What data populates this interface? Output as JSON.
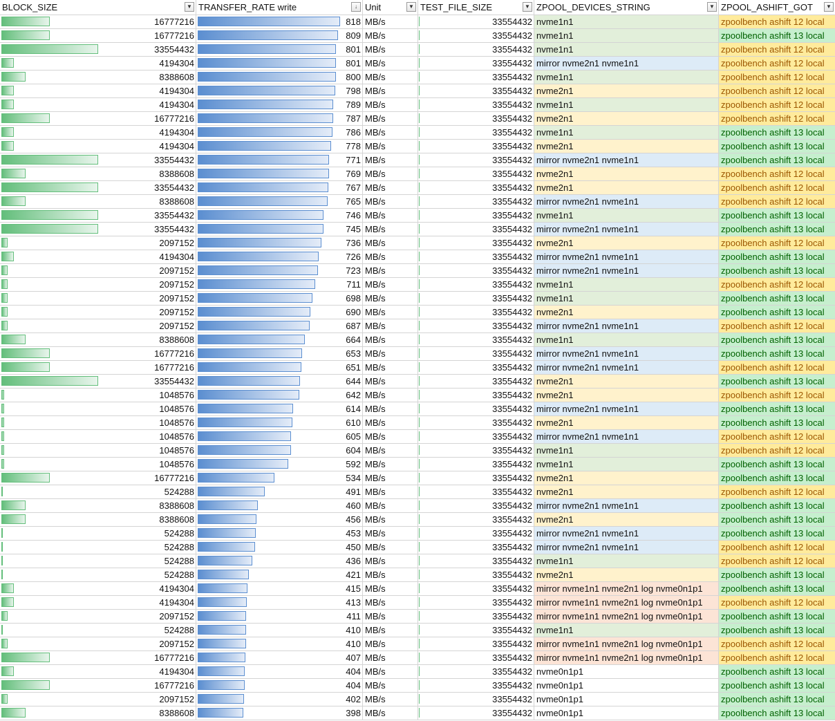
{
  "columns": [
    {
      "label": "BLOCK_SIZE",
      "filter": "dropdown"
    },
    {
      "label": "TRANSFER_RATE write",
      "filter": "sort-desc"
    },
    {
      "label": "Unit",
      "filter": "filter"
    },
    {
      "label": "TEST_FILE_SIZE",
      "filter": "filter"
    },
    {
      "label": "ZPOOL_DEVICES_STRING",
      "filter": "dropdown"
    },
    {
      "label": "ZPOOL_ASHIFT_GOT",
      "filter": "dropdown"
    }
  ],
  "colors": {
    "databar_green": "#63be7b",
    "databar_blue": "#5b8ed0",
    "device_nvme1n1": "#e2efda",
    "device_nvme2n1": "#fff2cc",
    "device_mirror": "#ddebf7",
    "device_mirror_log": "#fce4d6",
    "device_nvme0n1p1": "#ffffff",
    "ashift13_fill": "#c6efce",
    "ashift13_text": "#006100",
    "ashift12_fill": "#ffeb9c",
    "ashift12_text": "#9c5700"
  },
  "rows": [
    {
      "block_size": "16777216",
      "rate": "818",
      "unit": "MB/s",
      "test_file_size": "33554432",
      "devices": "nvme1n1",
      "ashift": "zpoolbench ashift 12 local"
    },
    {
      "block_size": "16777216",
      "rate": "809",
      "unit": "MB/s",
      "test_file_size": "33554432",
      "devices": "nvme1n1",
      "ashift": "zpoolbench ashift 13 local"
    },
    {
      "block_size": "33554432",
      "rate": "801",
      "unit": "MB/s",
      "test_file_size": "33554432",
      "devices": "nvme1n1",
      "ashift": "zpoolbench ashift 12 local"
    },
    {
      "block_size": "4194304",
      "rate": "801",
      "unit": "MB/s",
      "test_file_size": "33554432",
      "devices": "mirror nvme2n1 nvme1n1",
      "ashift": "zpoolbench ashift 12 local"
    },
    {
      "block_size": "8388608",
      "rate": "800",
      "unit": "MB/s",
      "test_file_size": "33554432",
      "devices": "nvme1n1",
      "ashift": "zpoolbench ashift 12 local"
    },
    {
      "block_size": "4194304",
      "rate": "798",
      "unit": "MB/s",
      "test_file_size": "33554432",
      "devices": "nvme2n1",
      "ashift": "zpoolbench ashift 12 local"
    },
    {
      "block_size": "4194304",
      "rate": "789",
      "unit": "MB/s",
      "test_file_size": "33554432",
      "devices": "nvme1n1",
      "ashift": "zpoolbench ashift 12 local"
    },
    {
      "block_size": "16777216",
      "rate": "787",
      "unit": "MB/s",
      "test_file_size": "33554432",
      "devices": "nvme2n1",
      "ashift": "zpoolbench ashift 12 local"
    },
    {
      "block_size": "4194304",
      "rate": "786",
      "unit": "MB/s",
      "test_file_size": "33554432",
      "devices": "nvme1n1",
      "ashift": "zpoolbench ashift 13 local"
    },
    {
      "block_size": "4194304",
      "rate": "778",
      "unit": "MB/s",
      "test_file_size": "33554432",
      "devices": "nvme2n1",
      "ashift": "zpoolbench ashift 13 local"
    },
    {
      "block_size": "33554432",
      "rate": "771",
      "unit": "MB/s",
      "test_file_size": "33554432",
      "devices": "mirror nvme2n1 nvme1n1",
      "ashift": "zpoolbench ashift 13 local"
    },
    {
      "block_size": "8388608",
      "rate": "769",
      "unit": "MB/s",
      "test_file_size": "33554432",
      "devices": "nvme2n1",
      "ashift": "zpoolbench ashift 12 local"
    },
    {
      "block_size": "33554432",
      "rate": "767",
      "unit": "MB/s",
      "test_file_size": "33554432",
      "devices": "nvme2n1",
      "ashift": "zpoolbench ashift 12 local"
    },
    {
      "block_size": "8388608",
      "rate": "765",
      "unit": "MB/s",
      "test_file_size": "33554432",
      "devices": "mirror nvme2n1 nvme1n1",
      "ashift": "zpoolbench ashift 12 local"
    },
    {
      "block_size": "33554432",
      "rate": "746",
      "unit": "MB/s",
      "test_file_size": "33554432",
      "devices": "nvme1n1",
      "ashift": "zpoolbench ashift 13 local"
    },
    {
      "block_size": "33554432",
      "rate": "745",
      "unit": "MB/s",
      "test_file_size": "33554432",
      "devices": "mirror nvme2n1 nvme1n1",
      "ashift": "zpoolbench ashift 13 local"
    },
    {
      "block_size": "2097152",
      "rate": "736",
      "unit": "MB/s",
      "test_file_size": "33554432",
      "devices": "nvme2n1",
      "ashift": "zpoolbench ashift 12 local"
    },
    {
      "block_size": "4194304",
      "rate": "726",
      "unit": "MB/s",
      "test_file_size": "33554432",
      "devices": "mirror nvme2n1 nvme1n1",
      "ashift": "zpoolbench ashift 13 local"
    },
    {
      "block_size": "2097152",
      "rate": "723",
      "unit": "MB/s",
      "test_file_size": "33554432",
      "devices": "mirror nvme2n1 nvme1n1",
      "ashift": "zpoolbench ashift 13 local"
    },
    {
      "block_size": "2097152",
      "rate": "711",
      "unit": "MB/s",
      "test_file_size": "33554432",
      "devices": "nvme1n1",
      "ashift": "zpoolbench ashift 12 local"
    },
    {
      "block_size": "2097152",
      "rate": "698",
      "unit": "MB/s",
      "test_file_size": "33554432",
      "devices": "nvme1n1",
      "ashift": "zpoolbench ashift 13 local"
    },
    {
      "block_size": "2097152",
      "rate": "690",
      "unit": "MB/s",
      "test_file_size": "33554432",
      "devices": "nvme2n1",
      "ashift": "zpoolbench ashift 13 local"
    },
    {
      "block_size": "2097152",
      "rate": "687",
      "unit": "MB/s",
      "test_file_size": "33554432",
      "devices": "mirror nvme2n1 nvme1n1",
      "ashift": "zpoolbench ashift 12 local"
    },
    {
      "block_size": "8388608",
      "rate": "664",
      "unit": "MB/s",
      "test_file_size": "33554432",
      "devices": "nvme1n1",
      "ashift": "zpoolbench ashift 13 local"
    },
    {
      "block_size": "16777216",
      "rate": "653",
      "unit": "MB/s",
      "test_file_size": "33554432",
      "devices": "mirror nvme2n1 nvme1n1",
      "ashift": "zpoolbench ashift 13 local"
    },
    {
      "block_size": "16777216",
      "rate": "651",
      "unit": "MB/s",
      "test_file_size": "33554432",
      "devices": "mirror nvme2n1 nvme1n1",
      "ashift": "zpoolbench ashift 12 local"
    },
    {
      "block_size": "33554432",
      "rate": "644",
      "unit": "MB/s",
      "test_file_size": "33554432",
      "devices": "nvme2n1",
      "ashift": "zpoolbench ashift 13 local"
    },
    {
      "block_size": "1048576",
      "rate": "642",
      "unit": "MB/s",
      "test_file_size": "33554432",
      "devices": "nvme2n1",
      "ashift": "zpoolbench ashift 12 local"
    },
    {
      "block_size": "1048576",
      "rate": "614",
      "unit": "MB/s",
      "test_file_size": "33554432",
      "devices": "mirror nvme2n1 nvme1n1",
      "ashift": "zpoolbench ashift 13 local"
    },
    {
      "block_size": "1048576",
      "rate": "610",
      "unit": "MB/s",
      "test_file_size": "33554432",
      "devices": "nvme2n1",
      "ashift": "zpoolbench ashift 13 local"
    },
    {
      "block_size": "1048576",
      "rate": "605",
      "unit": "MB/s",
      "test_file_size": "33554432",
      "devices": "mirror nvme2n1 nvme1n1",
      "ashift": "zpoolbench ashift 12 local"
    },
    {
      "block_size": "1048576",
      "rate": "604",
      "unit": "MB/s",
      "test_file_size": "33554432",
      "devices": "nvme1n1",
      "ashift": "zpoolbench ashift 12 local"
    },
    {
      "block_size": "1048576",
      "rate": "592",
      "unit": "MB/s",
      "test_file_size": "33554432",
      "devices": "nvme1n1",
      "ashift": "zpoolbench ashift 13 local"
    },
    {
      "block_size": "16777216",
      "rate": "534",
      "unit": "MB/s",
      "test_file_size": "33554432",
      "devices": "nvme2n1",
      "ashift": "zpoolbench ashift 13 local"
    },
    {
      "block_size": "524288",
      "rate": "491",
      "unit": "MB/s",
      "test_file_size": "33554432",
      "devices": "nvme2n1",
      "ashift": "zpoolbench ashift 12 local"
    },
    {
      "block_size": "8388608",
      "rate": "460",
      "unit": "MB/s",
      "test_file_size": "33554432",
      "devices": "mirror nvme2n1 nvme1n1",
      "ashift": "zpoolbench ashift 13 local"
    },
    {
      "block_size": "8388608",
      "rate": "456",
      "unit": "MB/s",
      "test_file_size": "33554432",
      "devices": "nvme2n1",
      "ashift": "zpoolbench ashift 13 local"
    },
    {
      "block_size": "524288",
      "rate": "453",
      "unit": "MB/s",
      "test_file_size": "33554432",
      "devices": "mirror nvme2n1 nvme1n1",
      "ashift": "zpoolbench ashift 13 local"
    },
    {
      "block_size": "524288",
      "rate": "450",
      "unit": "MB/s",
      "test_file_size": "33554432",
      "devices": "mirror nvme2n1 nvme1n1",
      "ashift": "zpoolbench ashift 12 local"
    },
    {
      "block_size": "524288",
      "rate": "436",
      "unit": "MB/s",
      "test_file_size": "33554432",
      "devices": "nvme1n1",
      "ashift": "zpoolbench ashift 12 local"
    },
    {
      "block_size": "524288",
      "rate": "421",
      "unit": "MB/s",
      "test_file_size": "33554432",
      "devices": "nvme2n1",
      "ashift": "zpoolbench ashift 13 local"
    },
    {
      "block_size": "4194304",
      "rate": "415",
      "unit": "MB/s",
      "test_file_size": "33554432",
      "devices": "mirror nvme1n1 nvme2n1 log nvme0n1p1",
      "ashift": "zpoolbench ashift 13 local"
    },
    {
      "block_size": "4194304",
      "rate": "413",
      "unit": "MB/s",
      "test_file_size": "33554432",
      "devices": "mirror nvme1n1 nvme2n1 log nvme0n1p1",
      "ashift": "zpoolbench ashift 12 local"
    },
    {
      "block_size": "2097152",
      "rate": "411",
      "unit": "MB/s",
      "test_file_size": "33554432",
      "devices": "mirror nvme1n1 nvme2n1 log nvme0n1p1",
      "ashift": "zpoolbench ashift 13 local"
    },
    {
      "block_size": "524288",
      "rate": "410",
      "unit": "MB/s",
      "test_file_size": "33554432",
      "devices": "nvme1n1",
      "ashift": "zpoolbench ashift 13 local"
    },
    {
      "block_size": "2097152",
      "rate": "410",
      "unit": "MB/s",
      "test_file_size": "33554432",
      "devices": "mirror nvme1n1 nvme2n1 log nvme0n1p1",
      "ashift": "zpoolbench ashift 12 local"
    },
    {
      "block_size": "16777216",
      "rate": "407",
      "unit": "MB/s",
      "test_file_size": "33554432",
      "devices": "mirror nvme1n1 nvme2n1 log nvme0n1p1",
      "ashift": "zpoolbench ashift 12 local"
    },
    {
      "block_size": "4194304",
      "rate": "404",
      "unit": "MB/s",
      "test_file_size": "33554432",
      "devices": "nvme0n1p1",
      "ashift": "zpoolbench ashift 13 local"
    },
    {
      "block_size": "16777216",
      "rate": "404",
      "unit": "MB/s",
      "test_file_size": "33554432",
      "devices": "nvme0n1p1",
      "ashift": "zpoolbench ashift 13 local"
    },
    {
      "block_size": "2097152",
      "rate": "402",
      "unit": "MB/s",
      "test_file_size": "33554432",
      "devices": "nvme0n1p1",
      "ashift": "zpoolbench ashift 13 local"
    },
    {
      "block_size": "8388608",
      "rate": "398",
      "unit": "MB/s",
      "test_file_size": "33554432",
      "devices": "nvme0n1p1",
      "ashift": "zpoolbench ashift 13 local"
    }
  ]
}
